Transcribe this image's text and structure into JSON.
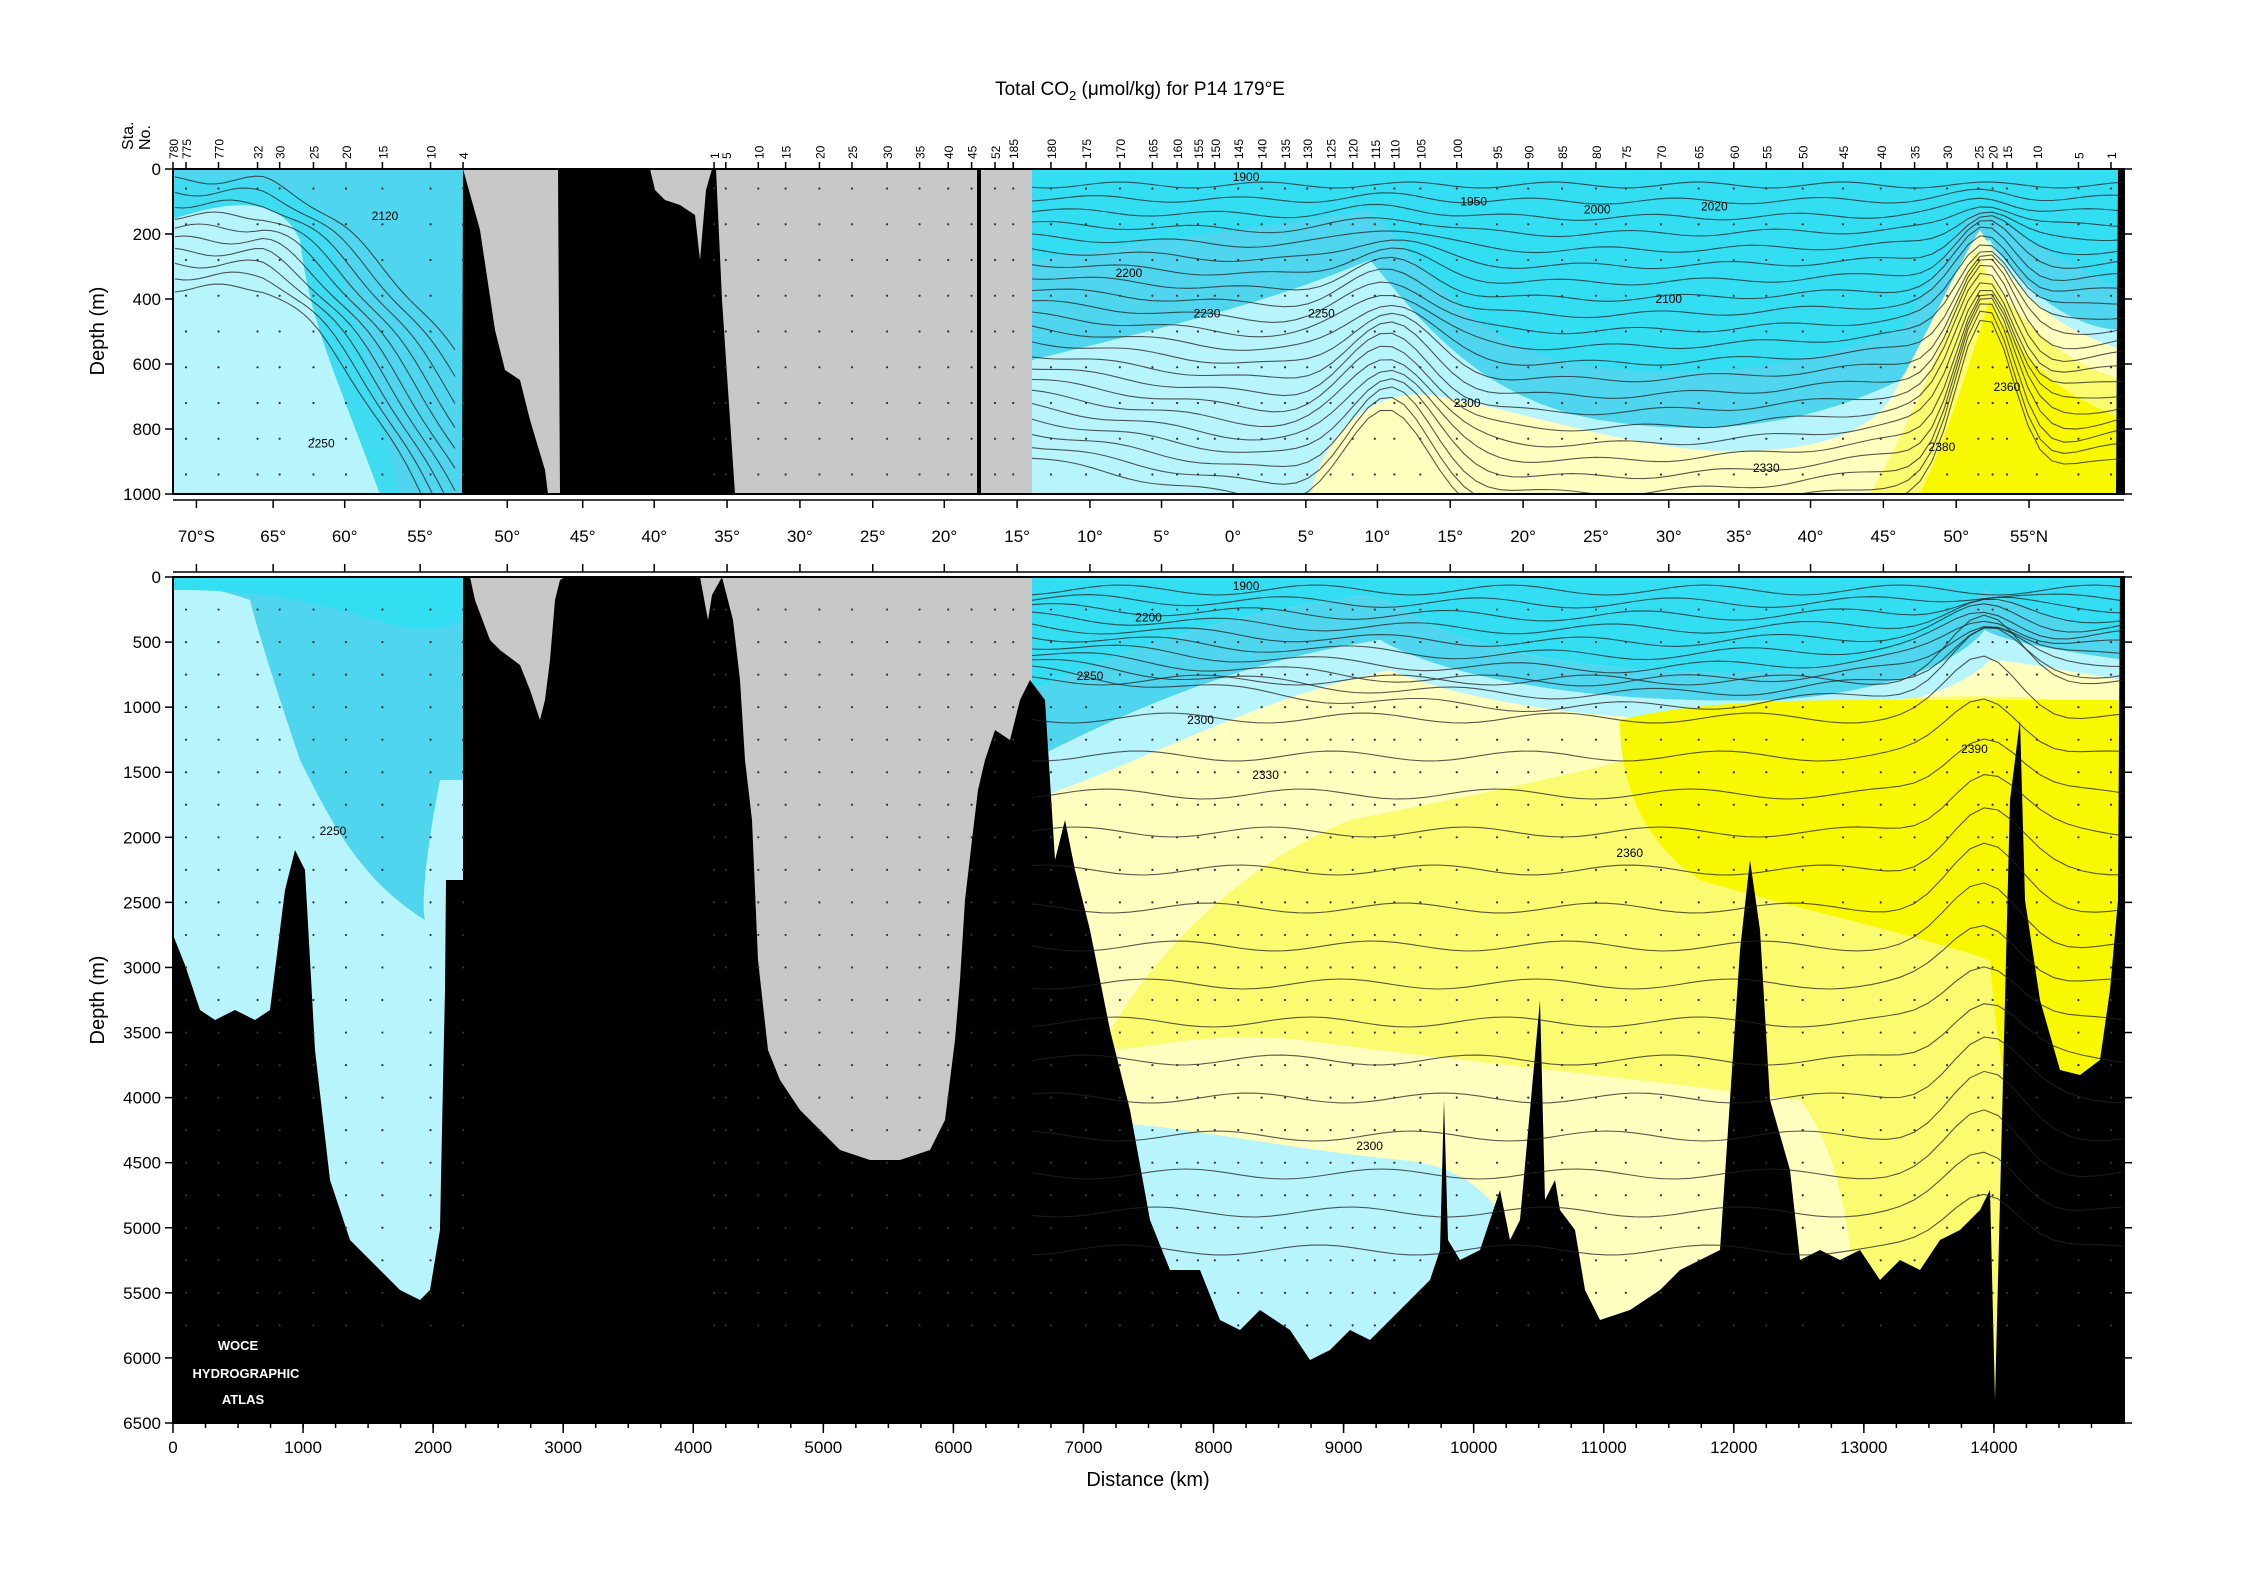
{
  "chart_data": {
    "type": "heatmap",
    "title_pre": "Total CO",
    "title_sub": "2",
    "title_post": " (μmol/kg) for P14 179°E",
    "xlabel": "Distance (km)",
    "ylabel_top": "Depth (m)",
    "ylabel_bottom": "Depth (m)",
    "xlim": [
      0,
      15000
    ],
    "top_ylim": [
      0,
      1000
    ],
    "bottom_ylim": [
      0,
      6500
    ],
    "top_yticks": [
      "0",
      "200",
      "400",
      "600",
      "800",
      "1000"
    ],
    "bottom_yticks": [
      "0",
      "500",
      "1000",
      "1500",
      "2000",
      "2500",
      "3000",
      "3500",
      "4000",
      "4500",
      "5000",
      "5500",
      "6000",
      "6500"
    ],
    "xticks": [
      "0",
      "1000",
      "2000",
      "3000",
      "4000",
      "5000",
      "6000",
      "7000",
      "8000",
      "9000",
      "10000",
      "11000",
      "12000",
      "13000",
      "14000"
    ],
    "station_axis_label_1": "Sta.",
    "station_axis_label_2": "No.",
    "station_labels": [
      {
        "label": "780",
        "km": 0
      },
      {
        "label": "775",
        "km": 100
      },
      {
        "label": "770",
        "km": 350
      },
      {
        "label": "32",
        "km": 650
      },
      {
        "label": "30",
        "km": 820
      },
      {
        "label": "25",
        "km": 1080
      },
      {
        "label": "20",
        "km": 1330
      },
      {
        "label": "15",
        "km": 1610
      },
      {
        "label": "10",
        "km": 1980
      },
      {
        "label": "4",
        "km": 2230
      },
      {
        "label": "1",
        "km": 4160
      },
      {
        "label": "5",
        "km": 4250
      },
      {
        "label": "10",
        "km": 4500
      },
      {
        "label": "15",
        "km": 4710
      },
      {
        "label": "20",
        "km": 4970
      },
      {
        "label": "25",
        "km": 5220
      },
      {
        "label": "30",
        "km": 5490
      },
      {
        "label": "35",
        "km": 5740
      },
      {
        "label": "40",
        "km": 5960
      },
      {
        "label": "45",
        "km": 6140
      },
      {
        "label": "52",
        "km": 6320
      },
      {
        "label": "185",
        "km": 6460
      },
      {
        "label": "180",
        "km": 6750
      },
      {
        "label": "175",
        "km": 7020
      },
      {
        "label": "170",
        "km": 7280
      },
      {
        "label": "165",
        "km": 7530
      },
      {
        "label": "160",
        "km": 7720
      },
      {
        "label": "155",
        "km": 7880
      },
      {
        "label": "150",
        "km": 8010
      },
      {
        "label": "145",
        "km": 8190
      },
      {
        "label": "140",
        "km": 8370
      },
      {
        "label": "135",
        "km": 8550
      },
      {
        "label": "130",
        "km": 8720
      },
      {
        "label": "125",
        "km": 8900
      },
      {
        "label": "120",
        "km": 9070
      },
      {
        "label": "115",
        "km": 9240
      },
      {
        "label": "110",
        "km": 9390
      },
      {
        "label": "105",
        "km": 9590
      },
      {
        "label": "100",
        "km": 9870
      },
      {
        "label": "95",
        "km": 10180
      },
      {
        "label": "90",
        "km": 10420
      },
      {
        "label": "85",
        "km": 10680
      },
      {
        "label": "80",
        "km": 10940
      },
      {
        "label": "75",
        "km": 11170
      },
      {
        "label": "70",
        "km": 11440
      },
      {
        "label": "65",
        "km": 11730
      },
      {
        "label": "60",
        "km": 12000
      },
      {
        "label": "55",
        "km": 12250
      },
      {
        "label": "50",
        "km": 12530
      },
      {
        "label": "45",
        "km": 12840
      },
      {
        "label": "40",
        "km": 13130
      },
      {
        "label": "35",
        "km": 13390
      },
      {
        "label": "30",
        "km": 13640
      },
      {
        "label": "25",
        "km": 13880
      },
      {
        "label": "20",
        "km": 13990
      },
      {
        "label": "15",
        "km": 14100
      },
      {
        "label": "10",
        "km": 14330
      },
      {
        "label": "5",
        "km": 14650
      },
      {
        "label": "1",
        "km": 14900
      }
    ],
    "latitude_labels": [
      {
        "label": "70°S",
        "km": 180
      },
      {
        "label": "65°",
        "km": 770
      },
      {
        "label": "60°",
        "km": 1320
      },
      {
        "label": "55°",
        "km": 1900
      },
      {
        "label": "50°",
        "km": 2570
      },
      {
        "label": "45°",
        "km": 3150
      },
      {
        "label": "40°",
        "km": 3700
      },
      {
        "label": "35°",
        "km": 4260
      },
      {
        "label": "30°",
        "km": 4820
      },
      {
        "label": "25°",
        "km": 5380
      },
      {
        "label": "20°",
        "km": 5930
      },
      {
        "label": "15°",
        "km": 6490
      },
      {
        "label": "10°",
        "km": 7050
      },
      {
        "label": "5°",
        "km": 7600
      },
      {
        "label": "0°",
        "km": 8150
      },
      {
        "label": "5°",
        "km": 8710
      },
      {
        "label": "10°",
        "km": 9260
      },
      {
        "label": "15°",
        "km": 9820
      },
      {
        "label": "20°",
        "km": 10380
      },
      {
        "label": "25°",
        "km": 10940
      },
      {
        "label": "30°",
        "km": 11500
      },
      {
        "label": "35°",
        "km": 12040
      },
      {
        "label": "40°",
        "km": 12590
      },
      {
        "label": "45°",
        "km": 13150
      },
      {
        "label": "50°",
        "km": 13710
      },
      {
        "label": "55°N",
        "km": 14270
      }
    ],
    "top_contour_labels": [
      {
        "text": "2120",
        "km": 1630,
        "depth": 145
      },
      {
        "text": "2250",
        "km": 1140,
        "depth": 845
      },
      {
        "text": "1900",
        "km": 8250,
        "depth": 25
      },
      {
        "text": "1950",
        "km": 10000,
        "depth": 100
      },
      {
        "text": "2000",
        "km": 10950,
        "depth": 125
      },
      {
        "text": "2020",
        "km": 11850,
        "depth": 115
      },
      {
        "text": "2200",
        "km": 7350,
        "depth": 320
      },
      {
        "text": "2230",
        "km": 7950,
        "depth": 445
      },
      {
        "text": "2250",
        "km": 8830,
        "depth": 445
      },
      {
        "text": "2100",
        "km": 11500,
        "depth": 400
      },
      {
        "text": "2300",
        "km": 9950,
        "depth": 720
      },
      {
        "text": "2330",
        "km": 12250,
        "depth": 920
      },
      {
        "text": "2360",
        "km": 14100,
        "depth": 670
      },
      {
        "text": "2380",
        "km": 13600,
        "depth": 855
      }
    ],
    "bottom_contour_labels": [
      {
        "text": "1900",
        "km": 8250,
        "depth": 70
      },
      {
        "text": "2200",
        "km": 7500,
        "depth": 310
      },
      {
        "text": "2250",
        "km": 7050,
        "depth": 760
      },
      {
        "text": "2300",
        "km": 7900,
        "depth": 1100
      },
      {
        "text": "2330",
        "km": 8400,
        "depth": 1520
      },
      {
        "text": "2360",
        "km": 11200,
        "depth": 2120
      },
      {
        "text": "2390",
        "km": 13850,
        "depth": 1320
      },
      {
        "text": "2250",
        "km": 1230,
        "depth": 1950
      },
      {
        "text": "2300",
        "km": 9200,
        "depth": 4370
      }
    ],
    "colors": {
      "deep_blue": "#4fd6ee",
      "cyan": "#33def3",
      "light_blue": "#b8f4fb",
      "light_yellow": "#ffffc0",
      "yellow_mid": "#fbfb70",
      "yellow": "#f8f800",
      "no_data": "#c8c8c8",
      "topography": "#000000"
    },
    "watermark": [
      "WOCE",
      "HYDROGRAPHIC",
      "ATLAS"
    ]
  }
}
